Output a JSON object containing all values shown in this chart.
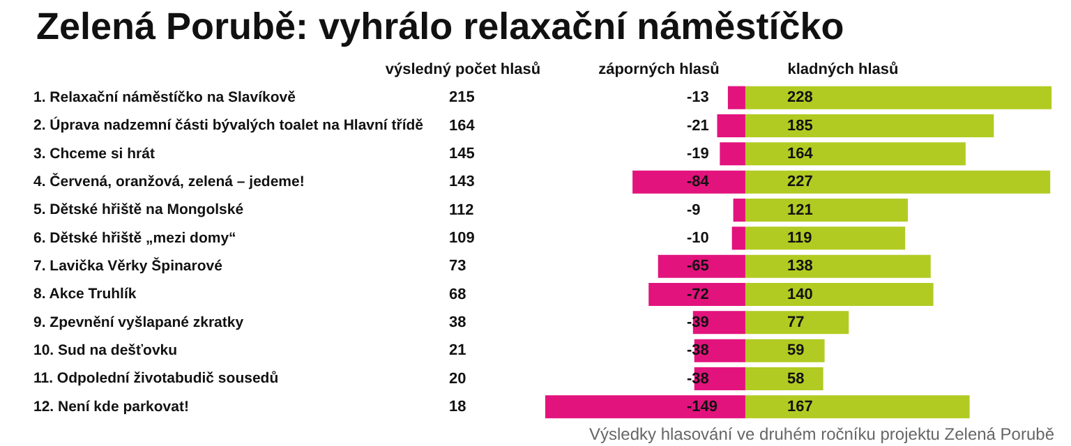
{
  "chart_data": {
    "type": "bar",
    "title": "Zelená Porubě: vyhrálo relaxační náměstíčko",
    "orientation": "horizontal",
    "stacked": true,
    "categories": [
      "1. Relaxační náměstíčko na Slavíkově",
      "2. Úprava nadzemní části bývalých toalet na Hlavní třídě",
      "3. Chceme si hrát",
      "4. Červená, oranžová, zelená – jedeme!",
      "5. Dětské hřiště na Mongolské",
      "6. Dětské hřiště „mezi domy“",
      "7. Lavička Věrky Špinarové",
      "8. Akce Truhlík",
      "9. Zpevnění vyšlapané zkratky",
      "10. Sud na dešťovku",
      "11. Odpolední životabudič sousedů",
      "12. Není kde parkovat!"
    ],
    "series": [
      {
        "name": "záporných hlasů",
        "color": "#e2137d",
        "values": [
          -13,
          -21,
          -19,
          -84,
          -9,
          -10,
          -65,
          -72,
          -39,
          -38,
          -38,
          -149
        ]
      },
      {
        "name": "kladných hlasů",
        "color": "#b2cb22",
        "values": [
          228,
          185,
          164,
          227,
          121,
          119,
          138,
          140,
          77,
          59,
          58,
          167
        ]
      }
    ],
    "y2_categories": [
      "215",
      "164",
      "145",
      "143",
      "112",
      "109",
      "73",
      "68",
      "38",
      "21",
      "20",
      "18"
    ],
    "xlim": [
      -150,
      230
    ],
    "tick_labels": "y",
    "grid": false,
    "legend": false,
    "data_labels": true,
    "annotations": [
      "výsledný počet hlasů",
      "Výsledky hlasování ve druhém ročníku projektu Zelená Porubě"
    ]
  }
}
